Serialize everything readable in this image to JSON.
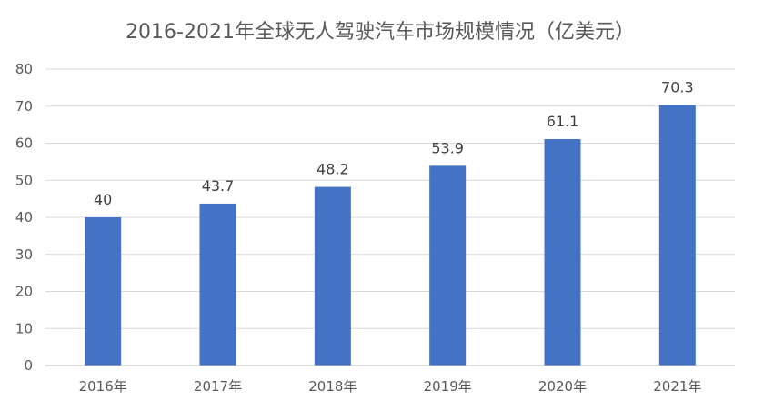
{
  "chart_data": {
    "type": "bar",
    "title": "2016-2021年全球无人驾驶汽车市场规模情况（亿美元）",
    "categories": [
      "2016年",
      "2017年",
      "2018年",
      "2019年",
      "2020年",
      "2021年"
    ],
    "values": [
      40,
      43.7,
      48.2,
      53.9,
      61.1,
      70.3
    ],
    "data_labels": [
      "40",
      "43.7",
      "48.2",
      "53.9",
      "61.1",
      "70.3"
    ],
    "y_ticks": [
      "0",
      "10",
      "20",
      "30",
      "40",
      "50",
      "60",
      "70",
      "80"
    ],
    "ylim": [
      0,
      80
    ],
    "ytick_step": 10,
    "grid": true,
    "legend": "none",
    "colors": {
      "bar": "#4472C4",
      "grid": "#D9D9D9",
      "axis": "#BFBFBF"
    }
  }
}
